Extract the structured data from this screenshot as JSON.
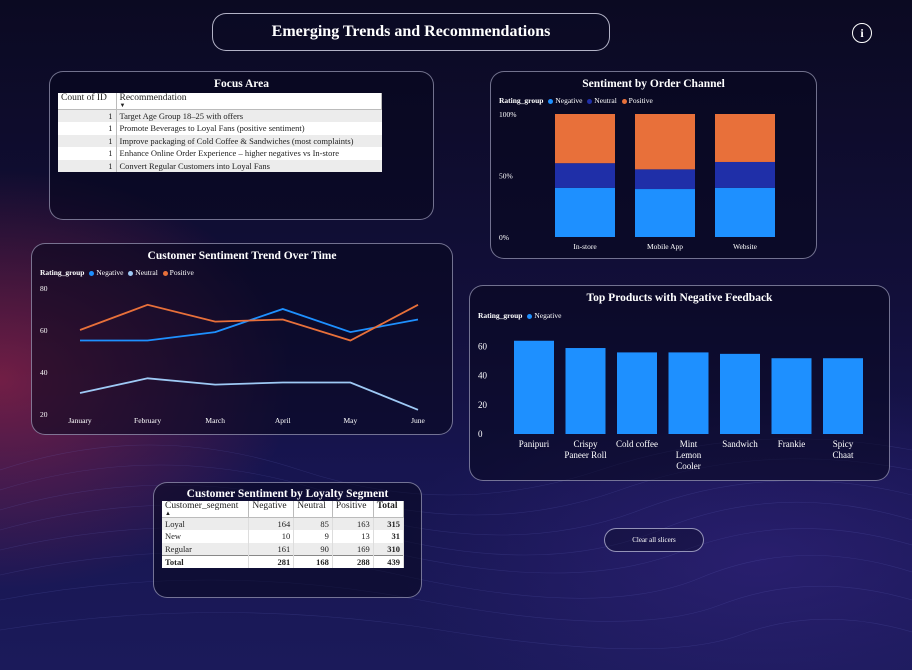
{
  "page_title": "Emerging Trends and Recommendations",
  "info_icon": "info-icon",
  "clear_button": "Clear all slicers",
  "colors": {
    "negative": "#1e90ff",
    "neutral": "#1f2fa8",
    "positive": "#e8703a",
    "neutral_line": "#9ec9f5"
  },
  "focus": {
    "title": "Focus Area",
    "columns": [
      "Count of ID",
      "Recommendation"
    ],
    "rows": [
      {
        "count": "1",
        "text": "Target Age Group 18–25 with offers"
      },
      {
        "count": "1",
        "text": "Promote Beverages to Loyal Fans (positive sentiment)"
      },
      {
        "count": "1",
        "text": "Improve packaging of Cold Coffee & Sandwiches (most complaints)"
      },
      {
        "count": "1",
        "text": "Enhance Online Order Experience – higher negatives vs In-store"
      },
      {
        "count": "1",
        "text": "Convert Regular Customers into Loyal Fans"
      }
    ]
  },
  "loyalty": {
    "title": "Customer Sentiment by Loyalty Segment",
    "columns": [
      "Customer_segment",
      "Negative",
      "Neutral",
      "Positive",
      "Total"
    ],
    "rows": [
      [
        "Loyal",
        "164",
        "85",
        "163",
        "315"
      ],
      [
        "New",
        "10",
        "9",
        "13",
        "31"
      ],
      [
        "Regular",
        "161",
        "90",
        "169",
        "310"
      ]
    ],
    "total_row": [
      "Total",
      "281",
      "168",
      "288",
      "439"
    ]
  },
  "chart_data": [
    {
      "id": "channel",
      "type": "bar",
      "stacked": "100%",
      "title": "Sentiment by Order Channel",
      "legend_title": "Rating_group",
      "categories": [
        "In-store",
        "Mobile App",
        "Website"
      ],
      "series": [
        {
          "name": "Negative",
          "values": [
            40,
            39,
            40
          ]
        },
        {
          "name": "Neutral",
          "values": [
            20,
            16,
            21
          ]
        },
        {
          "name": "Positive",
          "values": [
            40,
            45,
            39
          ]
        }
      ],
      "yticks": [
        "0%",
        "50%",
        "100%"
      ],
      "ylim": [
        0,
        100
      ]
    },
    {
      "id": "trend",
      "type": "line",
      "title": "Customer Sentiment Trend Over Time",
      "legend_title": "Rating_group",
      "x": [
        "January",
        "February",
        "March",
        "April",
        "May",
        "June"
      ],
      "series": [
        {
          "name": "Negative",
          "values": [
            55,
            55,
            59,
            70,
            59,
            65
          ]
        },
        {
          "name": "Neutral",
          "values": [
            30,
            37,
            34,
            35,
            35,
            22
          ]
        },
        {
          "name": "Positive",
          "values": [
            60,
            72,
            64,
            65,
            55,
            72
          ]
        }
      ],
      "yticks": [
        20,
        40,
        60,
        80
      ],
      "ylim": [
        20,
        80
      ]
    },
    {
      "id": "products",
      "type": "bar",
      "title": "Top Products with Negative Feedback",
      "legend_title": "Rating_group",
      "categories": [
        "Panipuri",
        "Crispy Paneer Roll",
        "Cold coffee",
        "Mint Lemon Cooler",
        "Sandwich",
        "Frankie",
        "Spicy Chaat"
      ],
      "category_lines": [
        [
          "Panipuri"
        ],
        [
          "Crispy",
          "Paneer Roll"
        ],
        [
          "Cold coffee"
        ],
        [
          "Mint",
          "Lemon",
          "Cooler"
        ],
        [
          "Sandwich"
        ],
        [
          "Frankie"
        ],
        [
          "Spicy",
          "Chaat"
        ]
      ],
      "series": [
        {
          "name": "Negative",
          "values": [
            64,
            59,
            56,
            56,
            55,
            52,
            52
          ]
        }
      ],
      "yticks": [
        0,
        20,
        40,
        60
      ],
      "ylim": [
        0,
        70
      ]
    }
  ]
}
